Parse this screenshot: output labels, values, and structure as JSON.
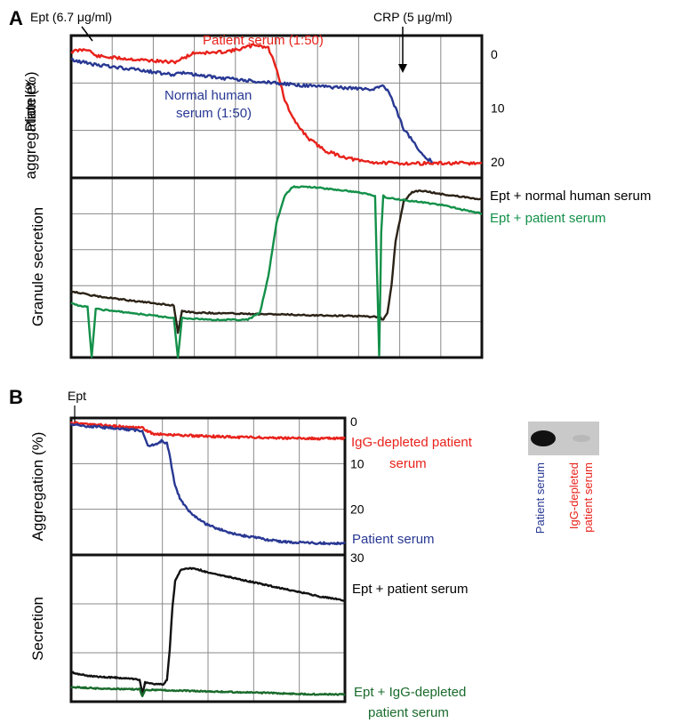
{
  "panels": {
    "A": "A",
    "B": "B"
  },
  "chart_data": [
    {
      "type": "line",
      "panel": "A",
      "subplot": "top",
      "ylabel": [
        "Platelet",
        "aggregation (%)"
      ],
      "yticks": [
        "0",
        "10",
        "20"
      ],
      "ylim": [
        -3.5,
        23
      ],
      "y_inverted": true,
      "xlim": [
        0,
        100
      ],
      "grid": true,
      "annotations": [
        {
          "text": "Ept (6.7 μg/ml)",
          "x": 3
        },
        {
          "text": "CRP (5 μg/ml)",
          "x": 75.5
        }
      ],
      "series": [
        {
          "name": "Patient serum (1:50)",
          "color": "#e8221b",
          "x": [
            0,
            4,
            6,
            10,
            20,
            25,
            27,
            30,
            35,
            40,
            45,
            48,
            50,
            52,
            54,
            56,
            58,
            62,
            66,
            70,
            75,
            80,
            90,
            100
          ],
          "y": [
            -0.5,
            -1.0,
            0.3,
            0.6,
            1.2,
            1.5,
            0.8,
            -0.3,
            -0.3,
            -0.8,
            -1.8,
            -1.2,
            2.5,
            8.5,
            12,
            14,
            15.8,
            18,
            19,
            19.8,
            20.2,
            20.3,
            20.3,
            20.3
          ]
        },
        {
          "name": "Normal human serum (1:50)",
          "color": "#283893",
          "x": [
            0,
            5,
            15,
            25,
            27,
            35,
            45,
            55,
            65,
            74,
            75.5,
            77,
            79,
            81,
            84,
            86,
            88
          ],
          "y": [
            1.0,
            1.8,
            2.8,
            3.8,
            3.4,
            4.3,
            5.0,
            5.7,
            6.2,
            6.5,
            5.8,
            6.5,
            10,
            14,
            17,
            19,
            20
          ]
        }
      ]
    },
    {
      "type": "line",
      "panel": "A",
      "subplot": "bottom",
      "ylabel": "Granule secretion",
      "ylim": [
        0,
        100
      ],
      "xlim": [
        0,
        100
      ],
      "grid": true,
      "series": [
        {
          "name": "Ept + normal human serum",
          "color": "#2b2216",
          "x": [
            0,
            4,
            8,
            10,
            15,
            25,
            26,
            27,
            30,
            40,
            50,
            60,
            70,
            75,
            76,
            77,
            78,
            79,
            81,
            83,
            85,
            90,
            100
          ],
          "y": [
            37,
            35,
            33.5,
            33,
            31.5,
            29,
            14,
            26,
            25,
            24.5,
            24,
            23.5,
            23,
            22.5,
            21,
            25,
            40,
            65,
            87,
            92,
            93,
            91,
            88
          ]
        },
        {
          "name": "Ept + patient serum",
          "color": "#139049",
          "x": [
            0,
            4,
            5,
            6,
            10,
            25,
            26,
            27,
            35,
            43,
            46,
            48,
            50,
            52,
            54,
            58,
            62,
            66,
            70,
            74,
            75,
            75.5,
            76,
            76.5,
            80,
            90,
            100
          ],
          "y": [
            30,
            28,
            0,
            27,
            26,
            22,
            0,
            22,
            21,
            21,
            25,
            45,
            75,
            90,
            95,
            95,
            94,
            93,
            92,
            90,
            1,
            70,
            90,
            89,
            88,
            85,
            80
          ]
        }
      ]
    },
    {
      "type": "line",
      "panel": "B",
      "subplot": "top",
      "ylabel": "Aggregation (%)",
      "yticks": [
        "0",
        "10",
        "20",
        "30"
      ],
      "ylim": [
        0,
        30
      ],
      "y_inverted": true,
      "xlim": [
        0,
        100
      ],
      "grid": true,
      "annotations": [
        {
          "text": "Ept",
          "x": 1.5
        }
      ],
      "series": [
        {
          "name": "IgG-depleted patient serum",
          "color": "#e8221b",
          "x": [
            0,
            10,
            20,
            26,
            30,
            40,
            50,
            60,
            70,
            80,
            90,
            100
          ],
          "y": [
            1,
            1.5,
            2,
            2.2,
            3.5,
            3.8,
            4,
            4.2,
            4.3,
            4.4,
            4.5,
            4.5
          ]
        },
        {
          "name": "Patient serum",
          "color": "#283893",
          "x": [
            0,
            10,
            20,
            26,
            28,
            30,
            33,
            35,
            36,
            37,
            38,
            40,
            43,
            46,
            50,
            55,
            60,
            65,
            70,
            75,
            80,
            90,
            100
          ],
          "y": [
            1.5,
            2,
            2.5,
            2.8,
            6,
            6,
            5,
            5.5,
            8,
            12,
            15,
            18,
            20.5,
            22,
            23.5,
            24.5,
            25.5,
            26,
            26.5,
            27,
            27.2,
            27.4,
            27.5
          ]
        }
      ]
    },
    {
      "type": "line",
      "panel": "B",
      "subplot": "bottom",
      "ylabel": "Secretion",
      "ylim": [
        0,
        100
      ],
      "xlim": [
        0,
        100
      ],
      "grid": true,
      "series": [
        {
          "name": "Ept + patient serum",
          "color": "#111111",
          "x": [
            0,
            5,
            10,
            20,
            25,
            26,
            27,
            30,
            34,
            35,
            36,
            37,
            38,
            40,
            45,
            50,
            60,
            70,
            80,
            90,
            100
          ],
          "y": [
            20,
            18,
            17,
            16,
            15,
            5,
            13,
            12,
            12,
            15,
            35,
            65,
            82,
            90,
            91,
            88,
            84,
            80,
            76,
            72,
            69
          ]
        },
        {
          "name": "Ept + IgG-depleted patient serum",
          "color": "#1a6b2c",
          "x": [
            0,
            10,
            20,
            25,
            26,
            27,
            30,
            40,
            50,
            60,
            70,
            80,
            90,
            100
          ],
          "y": [
            10,
            9,
            8.5,
            8.5,
            4,
            8,
            8,
            7.5,
            7,
            6.5,
            6,
            5.5,
            5,
            5
          ]
        }
      ]
    }
  ],
  "inset": {
    "lanes": [
      {
        "label": "Patient serum",
        "color": "#283893",
        "band_intensity": 1.0
      },
      {
        "label": [
          "IgG-depleted",
          "patient serum"
        ],
        "color": "#e8221b",
        "band_intensity": 0.15
      }
    ]
  }
}
